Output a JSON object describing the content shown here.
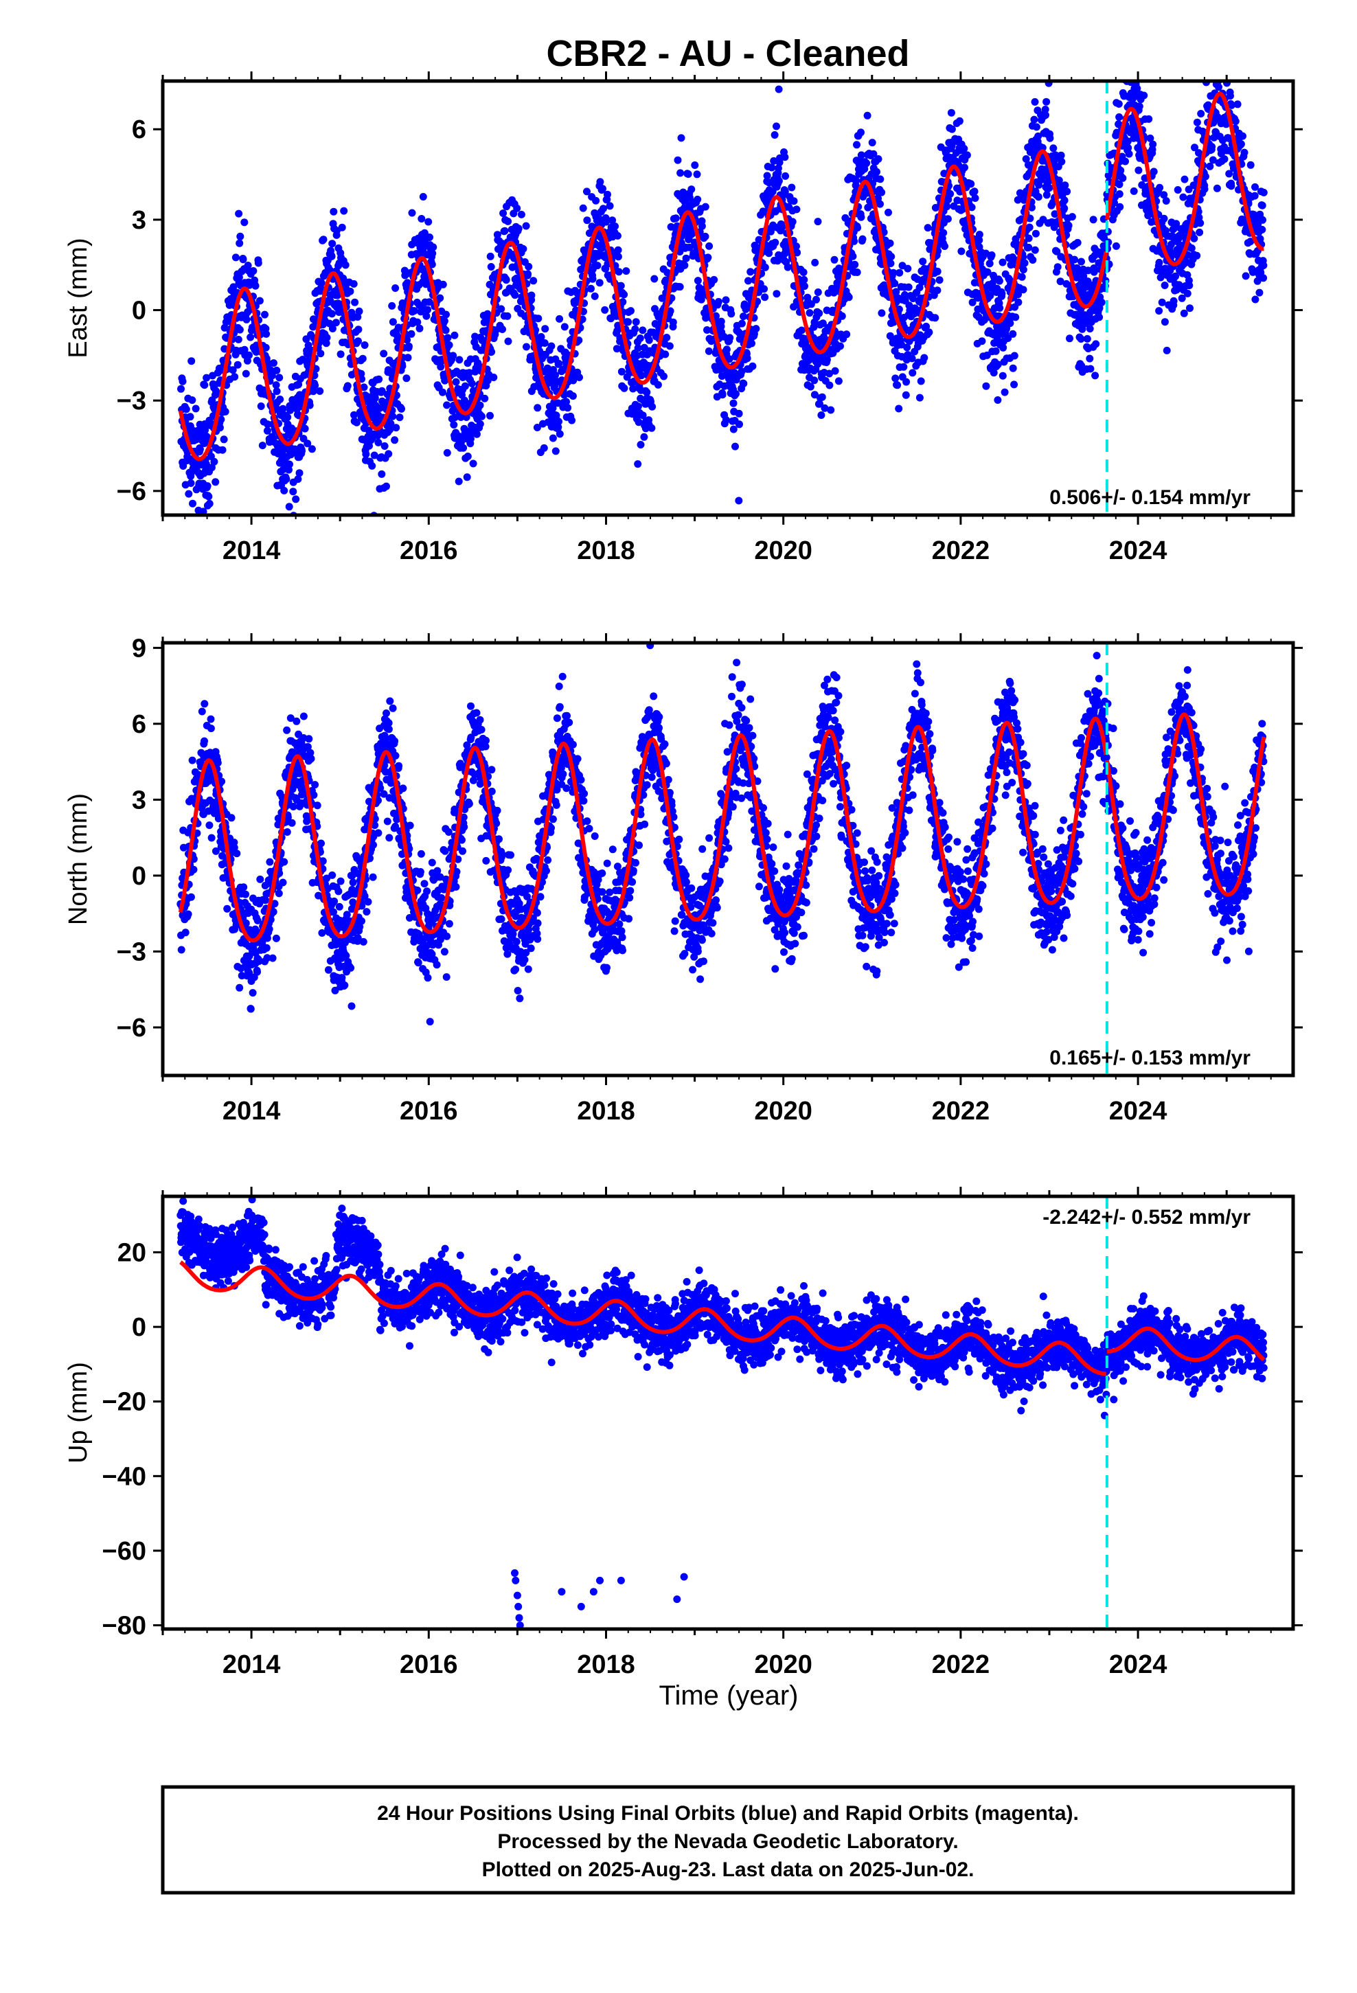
{
  "title": "CBR2  - AU - Cleaned",
  "colors": {
    "final_orbits": "#0000ff",
    "model": "#ff0000",
    "marker": "#00e6e6",
    "frame": "#000000"
  },
  "chart_data": [
    {
      "type": "scatter",
      "component": "East",
      "ylabel": "East (mm)",
      "xlabel": "",
      "xlim": [
        2013.0,
        2025.75
      ],
      "ylim": [
        -6.8,
        7.6
      ],
      "yticks": [
        -6,
        -3,
        0,
        3,
        6
      ],
      "xticks": [
        2014,
        2016,
        2018,
        2020,
        2022,
        2024
      ],
      "rate_label": "0.506+/- 0.154 mm/yr",
      "rate_position": "bottom-right",
      "marker_line_x": 2023.65,
      "series": [
        {
          "role": "daily positions (blue)",
          "x_range": [
            2013.2,
            2025.42
          ],
          "sampling": "daily"
        },
        {
          "role": "trend plus seasonal fit (red)",
          "offset": -2.6,
          "rate": 0.506,
          "annual_amplitude": 2.7,
          "annual_peak_frac": 0.92,
          "semiannual_amplitude": 0.25,
          "step_at_marker": 0.9
        }
      ]
    },
    {
      "type": "scatter",
      "component": "North",
      "ylabel": "North (mm)",
      "xlabel": "",
      "xlim": [
        2013.0,
        2025.75
      ],
      "ylim": [
        -7.9,
        9.2
      ],
      "yticks": [
        -6,
        -3,
        0,
        3,
        6,
        9
      ],
      "xticks": [
        2014,
        2016,
        2018,
        2020,
        2022,
        2024
      ],
      "rate_label": "0.165+/- 0.153 mm/yr",
      "rate_position": "bottom-right",
      "marker_line_x": 2023.65,
      "series": [
        {
          "role": "daily positions (blue)",
          "x_range": [
            2013.2,
            2025.42
          ],
          "sampling": "daily"
        },
        {
          "role": "trend plus seasonal fit (red)",
          "offset": 0.4,
          "rate": 0.165,
          "annual_amplitude": 3.6,
          "annual_peak_frac": 0.52,
          "semiannual_amplitude": 0.5,
          "step_at_marker": 0.0
        }
      ]
    },
    {
      "type": "scatter",
      "component": "Up",
      "ylabel": "Up (mm)",
      "xlabel": "Time (year)",
      "xlim": [
        2013.0,
        2025.75
      ],
      "ylim": [
        -81,
        35
      ],
      "yticks": [
        -80,
        -60,
        -40,
        -20,
        0,
        20
      ],
      "xticks": [
        2014,
        2016,
        2018,
        2020,
        2022,
        2024
      ],
      "rate_label": "-2.242+/- 0.552 mm/yr",
      "rate_position": "top-right",
      "marker_line_x": 2023.65,
      "outliers": [
        [
          2016.97,
          -66
        ],
        [
          2016.98,
          -68
        ],
        [
          2017.0,
          -72
        ],
        [
          2017.01,
          -75
        ],
        [
          2017.02,
          -78
        ],
        [
          2017.03,
          -80
        ],
        [
          2017.5,
          -71
        ],
        [
          2017.72,
          -75
        ],
        [
          2017.86,
          -71
        ],
        [
          2017.93,
          -68
        ],
        [
          2018.17,
          -68
        ],
        [
          2018.8,
          -73
        ],
        [
          2018.88,
          -67
        ]
      ],
      "series": [
        {
          "role": "daily positions (blue)",
          "x_range": [
            2013.2,
            2025.42
          ],
          "sampling": "daily"
        },
        {
          "role": "trend plus seasonal fit (red)",
          "offset": 14.0,
          "rate": -2.242,
          "annual_amplitude": 3.6,
          "annual_peak_frac": 0.12,
          "semiannual_amplitude": 0.4,
          "step_at_marker": 6.0
        }
      ]
    }
  ],
  "footer": {
    "line1": "24 Hour Positions Using Final Orbits (blue) and Rapid Orbits (magenta).",
    "line2": "Processed by the Nevada Geodetic Laboratory.",
    "line3": "Plotted on 2025-Aug-23. Last data on 2025-Jun-02."
  }
}
